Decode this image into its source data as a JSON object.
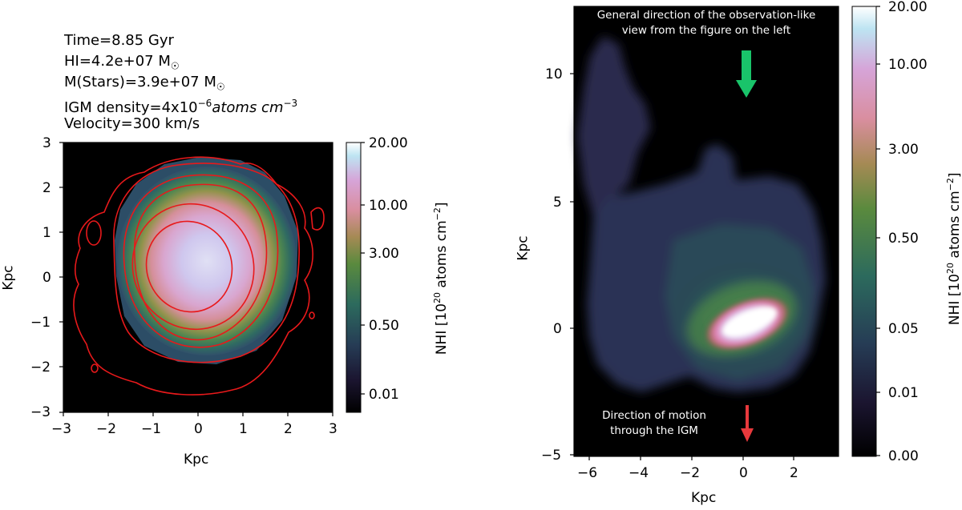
{
  "chart_data": [
    {
      "type": "heatmap",
      "panel": "left",
      "info_lines": [
        "Time=8.85 Gyr",
        "HI=4.2e+07 M",
        "M(Stars)=3.9e+07 M",
        " IGM density=4x10",
        "Velocity=300 km/s"
      ],
      "info_suffix": {
        "sun": "☉",
        "igm_exp": "−6",
        "igm_units": "atoms cm",
        "igm_units_exp": "−3"
      },
      "xlabel": "Kpc",
      "ylabel": "Kpc",
      "xlim": [
        -3,
        3
      ],
      "ylim": [
        -3,
        3
      ],
      "xticks": [
        "−3",
        "−2",
        "−1",
        "0",
        "1",
        "2",
        "3"
      ],
      "yticks": [
        "3",
        "2",
        "1",
        "0",
        "−1",
        "−2",
        "−3"
      ],
      "colorbar": {
        "label": "NHI [10",
        "label_exp": "20",
        "label_end": " atoms cm",
        "label_end_exp": "−2",
        "label_close": "]",
        "ticks": [
          "20.00",
          "10.00",
          "3.00",
          "0.50",
          "0.01"
        ]
      },
      "contours_color": "#e8191b"
    },
    {
      "type": "heatmap",
      "panel": "right",
      "xlabel": "Kpc",
      "ylabel": "Kpc",
      "xlim": [
        -6.7,
        3.5
      ],
      "ylim": [
        -5,
        14
      ],
      "xticks": [
        "−6",
        "−4",
        "−2",
        "0",
        "2"
      ],
      "yticks": [
        "10",
        "5",
        "0",
        "−5"
      ],
      "colorbar": {
        "label": "NHI [10",
        "label_exp": "20",
        "label_end": " atoms cm",
        "label_end_exp": "−2",
        "label_close": "]",
        "ticks": [
          "20.00",
          "10.00",
          "3.00",
          "0.50",
          "0.05",
          "0.01",
          "0.00"
        ]
      },
      "annotations": {
        "top_line1": "General direction of the observation-like",
        "top_line2": "view from the figure on the left",
        "bottom_line1": "Direction of motion",
        "bottom_line2": "through the IGM"
      },
      "arrow_colors": {
        "observation": "#19c46a",
        "motion": "#e8393c"
      }
    }
  ]
}
